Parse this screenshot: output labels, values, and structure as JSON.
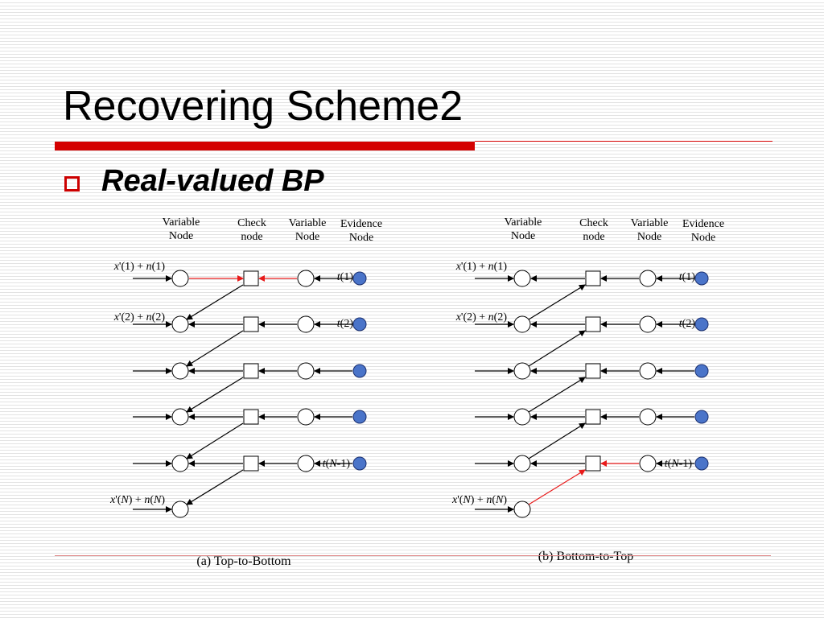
{
  "slide": {
    "title": "Recovering Scheme2",
    "bullet": "Real-valued BP"
  },
  "colors": {
    "accent": "#d40000",
    "evidence_fill": "#4a74c9",
    "highlight_edge": "#e81a1a"
  },
  "diagrams": [
    {
      "caption": "(a) Top-to-Bottom",
      "headers": [
        [
          "Variable",
          "Node"
        ],
        [
          "Check",
          "node"
        ],
        [
          "Variable",
          "Node"
        ],
        [
          "Evidence",
          "Node"
        ]
      ],
      "inputs": [
        "x'(1) + n(1)",
        "x'(2) + n(2)",
        "x'(N) + n(N)"
      ],
      "evidence_labels": [
        "t(1)",
        "t(2)",
        "t(N-1)"
      ],
      "highlight": "top"
    },
    {
      "caption": "(b) Bottom-to-Top",
      "headers": [
        [
          "Variable",
          "Node"
        ],
        [
          "Check",
          "node"
        ],
        [
          "Variable",
          "Node"
        ],
        [
          "Evidence",
          "Node"
        ]
      ],
      "inputs": [
        "x'(1) + n(1)",
        "x'(2) + n(2)",
        "x'(N) + n(N)"
      ],
      "evidence_labels": [
        "t(1)",
        "t(2)",
        "t(N-1)"
      ],
      "highlight": "bottom"
    }
  ]
}
